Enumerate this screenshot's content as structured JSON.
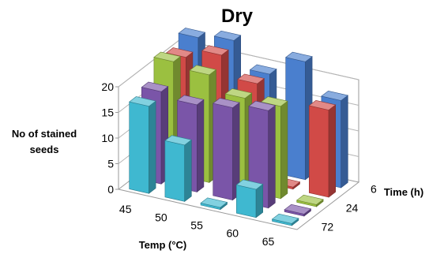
{
  "chart_data": {
    "type": "bar",
    "title": "Dry",
    "xlabel": "Temp (°C)",
    "ylabel_lines": [
      "No of stained",
      "seeds"
    ],
    "zlabel": "Time (h)",
    "temperature_categories": [
      "45",
      "50",
      "55",
      "60",
      "65"
    ],
    "time_tick_labels": [
      "6",
      "24",
      "72"
    ],
    "z_ticks": [
      0,
      5,
      10,
      15,
      20
    ],
    "zlim": [
      0,
      20
    ],
    "series": [
      {
        "color": "#3fb8d0",
        "values": [
          17,
          11,
          0,
          5.5,
          0
        ]
      },
      {
        "color": "#7a55a8",
        "values": [
          18,
          17,
          18,
          19,
          0
        ]
      },
      {
        "color": "#9bc040",
        "values": [
          22,
          21,
          18,
          18,
          0
        ]
      },
      {
        "color": "#d14a47",
        "values": [
          21,
          23,
          19,
          0,
          17
        ]
      },
      {
        "color": "#4a7fce",
        "values": [
          23,
          24,
          19,
          23,
          17
        ]
      }
    ]
  }
}
